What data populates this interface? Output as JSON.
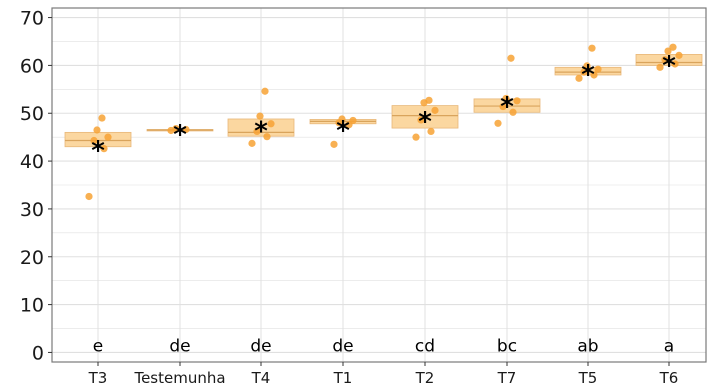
{
  "chart_data": {
    "type": "boxplot",
    "title": "",
    "xlabel": "",
    "ylabel": "",
    "ylim": [
      -2,
      72
    ],
    "yticks": [
      0,
      10,
      20,
      30,
      40,
      50,
      60,
      70
    ],
    "grid": true,
    "legend": "none",
    "categories": [
      "T3",
      "Testemunha",
      "T4",
      "T1",
      "T2",
      "T7",
      "T5",
      "T6"
    ],
    "boxes": [
      {
        "category": "T3",
        "q1": 43.0,
        "median": 44.3,
        "q3": 46.0,
        "mean": 43.2,
        "letter": "e",
        "points": [
          32.6,
          42.6,
          44.3,
          45.0,
          46.5,
          49.0
        ]
      },
      {
        "category": "Testemunha",
        "q1": 46.3,
        "median": 46.5,
        "q3": 46.6,
        "mean": 46.5,
        "letter": "de",
        "points": [
          46.4,
          46.6,
          46.8
        ]
      },
      {
        "category": "T4",
        "q1": 45.2,
        "median": 46.0,
        "q3": 48.8,
        "mean": 47.2,
        "letter": "de",
        "points": [
          43.7,
          45.1,
          46.2,
          47.8,
          49.4,
          54.6
        ]
      },
      {
        "category": "T1",
        "q1": 47.8,
        "median": 48.3,
        "q3": 48.7,
        "mean": 47.3,
        "letter": "de",
        "points": [
          43.5,
          47.6,
          48.0,
          48.5,
          48.8
        ]
      },
      {
        "category": "T2",
        "q1": 46.9,
        "median": 49.5,
        "q3": 51.6,
        "mean": 49.2,
        "letter": "cd",
        "points": [
          45.0,
          46.2,
          48.6,
          50.6,
          52.2,
          52.7
        ]
      },
      {
        "category": "T7",
        "q1": 50.2,
        "median": 51.5,
        "q3": 53.0,
        "mean": 52.3,
        "letter": "bc",
        "points": [
          47.9,
          50.2,
          51.4,
          52.6,
          53.1,
          61.5
        ]
      },
      {
        "category": "T5",
        "q1": 58.0,
        "median": 58.6,
        "q3": 59.6,
        "mean": 59.0,
        "letter": "ab",
        "points": [
          57.3,
          58.0,
          58.6,
          59.2,
          59.9,
          63.6
        ]
      },
      {
        "category": "T6",
        "q1": 60.0,
        "median": 60.6,
        "q3": 62.3,
        "mean": 60.9,
        "letter": "a",
        "points": [
          59.6,
          60.3,
          61.2,
          62.1,
          63.0,
          63.8
        ]
      }
    ],
    "colors": {
      "box_fill": "#fbd7a0",
      "box_stroke": "#e8b87a",
      "median_line": "#d9a45c",
      "point": "#f7a234",
      "grid": "#e0e0e0",
      "panel_border": "#7a7a7a"
    }
  }
}
